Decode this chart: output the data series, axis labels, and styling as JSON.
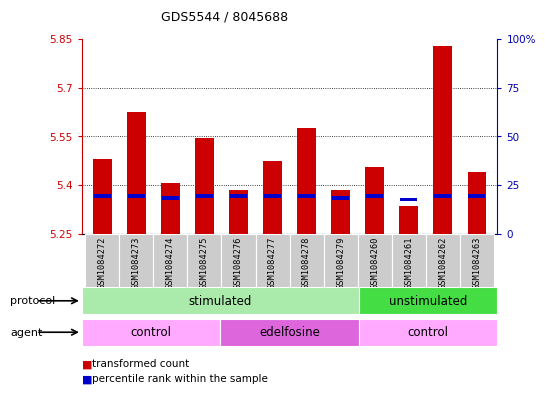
{
  "title": "GDS5544 / 8045688",
  "samples": [
    "GSM1084272",
    "GSM1084273",
    "GSM1084274",
    "GSM1084275",
    "GSM1084276",
    "GSM1084277",
    "GSM1084278",
    "GSM1084279",
    "GSM1084260",
    "GSM1084261",
    "GSM1084262",
    "GSM1084263"
  ],
  "transformed_count": [
    5.48,
    5.625,
    5.405,
    5.545,
    5.385,
    5.475,
    5.575,
    5.385,
    5.455,
    5.335,
    5.83,
    5.44
  ],
  "percentile_rank": [
    5.365,
    5.365,
    5.36,
    5.365,
    5.365,
    5.365,
    5.365,
    5.36,
    5.365,
    5.355,
    5.365,
    5.365
  ],
  "bar_bottom": 5.25,
  "ylim_left": [
    5.25,
    5.85
  ],
  "ylim_right": [
    0,
    100
  ],
  "yticks_left": [
    5.25,
    5.4,
    5.55,
    5.7,
    5.85
  ],
  "yticks_right": [
    0,
    25,
    50,
    75,
    100
  ],
  "ytick_labels_left": [
    "5.25",
    "5.4",
    "5.55",
    "5.7",
    "5.85"
  ],
  "ytick_labels_right": [
    "0",
    "25",
    "50",
    "75",
    "100%"
  ],
  "red_color": "#cc0000",
  "blue_color": "#0000cc",
  "protocol_groups": [
    {
      "label": "stimulated",
      "start": 0,
      "end": 7,
      "color": "#aaeaaa"
    },
    {
      "label": "unstimulated",
      "start": 8,
      "end": 11,
      "color": "#44dd44"
    }
  ],
  "agent_groups": [
    {
      "label": "control",
      "start": 0,
      "end": 3,
      "color": "#ffaaff"
    },
    {
      "label": "edelfosine",
      "start": 4,
      "end": 7,
      "color": "#dd66dd"
    },
    {
      "label": "control",
      "start": 8,
      "end": 11,
      "color": "#ffaaff"
    }
  ],
  "legend_items": [
    {
      "label": "transformed count",
      "color": "#cc0000"
    },
    {
      "label": "percentile rank within the sample",
      "color": "#0000cc"
    }
  ],
  "bar_width": 0.55,
  "grid_color": "#000000",
  "bg_color": "#ffffff",
  "tick_color_left": "#cc0000",
  "tick_color_right": "#0000aa",
  "sample_bg_color": "#cccccc",
  "protocol_label": "protocol",
  "agent_label": "agent",
  "blue_bar_height": 0.012,
  "blue_bar_relative": 0.115
}
